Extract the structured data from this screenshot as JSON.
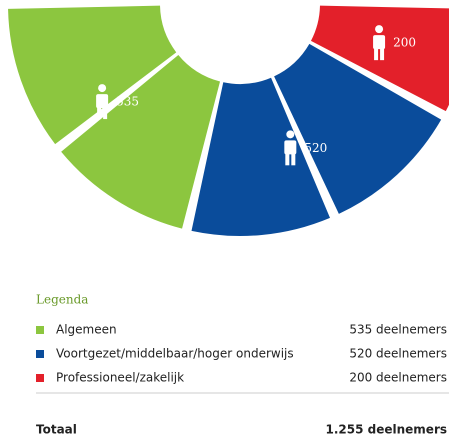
{
  "chart_data": {
    "type": "pie",
    "categories": [
      "Algemeen",
      "Voortgezet/middelbaar/hoger onderwijs",
      "Professioneel/zakelijk"
    ],
    "values": [
      535,
      520,
      200
    ],
    "value_labels": [
      "535 deelnemers",
      "520 deelnemers",
      "200 deelnemers"
    ],
    "colors": [
      "#8cc63f",
      "#0a4c9b",
      "#e3202a"
    ],
    "legend_title": "Legenda",
    "total": {
      "label": "Totaal",
      "value_label": "1.255 deelnemers"
    }
  }
}
